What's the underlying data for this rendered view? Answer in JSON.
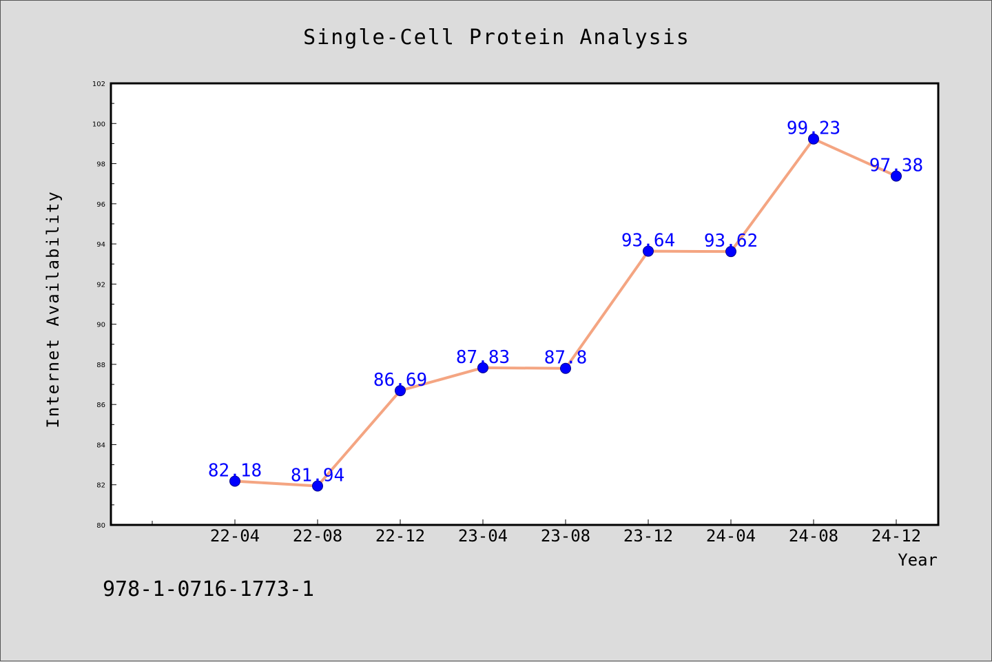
{
  "chart_data": {
    "type": "line",
    "title": "Single-Cell Protein Analysis",
    "xlabel": "Year",
    "ylabel": "Internet Availability",
    "categories": [
      "22-04",
      "22-08",
      "22-12",
      "23-04",
      "23-08",
      "23-12",
      "24-04",
      "24-08",
      "24-12"
    ],
    "series": [
      {
        "values": [
          82.18,
          81.94,
          86.69,
          87.83,
          87.8,
          93.64,
          93.62,
          99.23,
          97.38
        ],
        "data_labels": [
          "82.18",
          "81.94",
          "86.69",
          "87.83",
          "87.8",
          "93.64",
          "93.62",
          "99.23",
          "97.38"
        ],
        "line_color": "#f4a582",
        "marker_color": "#0000ff"
      }
    ],
    "ylim": [
      80,
      102
    ],
    "yticks": [
      "80",
      "82",
      "84",
      "86",
      "88",
      "90",
      "92",
      "94",
      "96",
      "98",
      "100",
      "102"
    ],
    "grid": false,
    "label_color": "#0000ff"
  },
  "footer_text": "978-1-0716-1773-1"
}
